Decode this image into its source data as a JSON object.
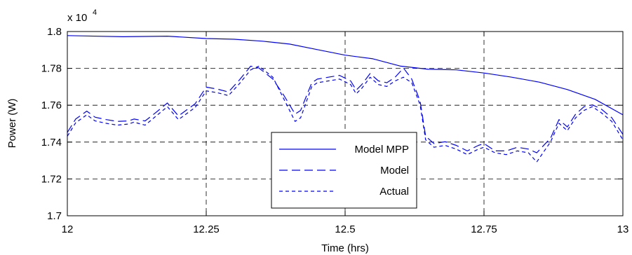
{
  "chart_data": {
    "type": "line",
    "title": "",
    "xlabel": "Time (hrs)",
    "ylabel": "Power (W)",
    "y_multiplier_label": "x 10",
    "y_multiplier_exponent": "4",
    "xlim": [
      12,
      13
    ],
    "ylim": [
      1.7,
      1.8
    ],
    "xticks": [
      12,
      12.25,
      12.5,
      12.75,
      13
    ],
    "xtick_labels": [
      "12",
      "12.25",
      "12.5",
      "12.75",
      "13"
    ],
    "yticks": [
      1.7,
      1.72,
      1.74,
      1.76,
      1.78,
      1.8
    ],
    "ytick_labels": [
      "1.7",
      "1.72",
      "1.74",
      "1.76",
      "1.78",
      "1.8"
    ],
    "grid": true,
    "legend_position": "bottom-center",
    "line_color": "#0000ff",
    "series": [
      {
        "name": "Model MPP",
        "style": "solid",
        "points": [
          [
            12.0,
            1.7978
          ],
          [
            12.1,
            1.7972
          ],
          [
            12.18,
            1.7975
          ],
          [
            12.25,
            1.7962
          ],
          [
            12.3,
            1.7958
          ],
          [
            12.35,
            1.7948
          ],
          [
            12.4,
            1.7932
          ],
          [
            12.45,
            1.7902
          ],
          [
            12.5,
            1.7872
          ],
          [
            12.55,
            1.7852
          ],
          [
            12.6,
            1.7812
          ],
          [
            12.65,
            1.7795
          ],
          [
            12.7,
            1.7792
          ],
          [
            12.75,
            1.7775
          ],
          [
            12.8,
            1.7752
          ],
          [
            12.85,
            1.7725
          ],
          [
            12.9,
            1.7685
          ],
          [
            12.95,
            1.7632
          ],
          [
            13.0,
            1.7548
          ]
        ]
      },
      {
        "name": "Model",
        "style": "long-dash",
        "points": [
          [
            12.0,
            1.7452
          ],
          [
            12.015,
            1.7525
          ],
          [
            12.035,
            1.7568
          ],
          [
            12.05,
            1.7535
          ],
          [
            12.07,
            1.7522
          ],
          [
            12.09,
            1.7512
          ],
          [
            12.11,
            1.7515
          ],
          [
            12.12,
            1.7525
          ],
          [
            12.14,
            1.7515
          ],
          [
            12.16,
            1.7562
          ],
          [
            12.18,
            1.7612
          ],
          [
            12.2,
            1.7542
          ],
          [
            12.23,
            1.7608
          ],
          [
            12.25,
            1.7698
          ],
          [
            12.27,
            1.7688
          ],
          [
            12.29,
            1.7672
          ],
          [
            12.31,
            1.7738
          ],
          [
            12.33,
            1.7812
          ],
          [
            12.345,
            1.7802
          ],
          [
            12.37,
            1.7742
          ],
          [
            12.39,
            1.7652
          ],
          [
            12.41,
            1.7552
          ],
          [
            12.42,
            1.7572
          ],
          [
            12.44,
            1.7722
          ],
          [
            12.45,
            1.7742
          ],
          [
            12.47,
            1.7752
          ],
          [
            12.49,
            1.7762
          ],
          [
            12.51,
            1.7732
          ],
          [
            12.52,
            1.7682
          ],
          [
            12.53,
            1.7712
          ],
          [
            12.545,
            1.7772
          ],
          [
            12.56,
            1.7732
          ],
          [
            12.575,
            1.7722
          ],
          [
            12.59,
            1.7752
          ],
          [
            12.605,
            1.7802
          ],
          [
            12.62,
            1.7742
          ],
          [
            12.635,
            1.7622
          ],
          [
            12.645,
            1.7432
          ],
          [
            12.66,
            1.7392
          ],
          [
            12.68,
            1.7402
          ],
          [
            12.7,
            1.7382
          ],
          [
            12.72,
            1.7352
          ],
          [
            12.74,
            1.7382
          ],
          [
            12.75,
            1.7392
          ],
          [
            12.77,
            1.7352
          ],
          [
            12.79,
            1.7352
          ],
          [
            12.81,
            1.7372
          ],
          [
            12.83,
            1.7362
          ],
          [
            12.845,
            1.7342
          ],
          [
            12.87,
            1.7422
          ],
          [
            12.885,
            1.7522
          ],
          [
            12.9,
            1.7482
          ],
          [
            12.915,
            1.7552
          ],
          [
            12.93,
            1.7592
          ],
          [
            12.945,
            1.7602
          ],
          [
            12.96,
            1.7582
          ],
          [
            12.98,
            1.7532
          ],
          [
            13.0,
            1.7442
          ]
        ]
      },
      {
        "name": "Actual",
        "style": "short-dash",
        "points": [
          [
            12.0,
            1.7432
          ],
          [
            12.015,
            1.7505
          ],
          [
            12.035,
            1.7548
          ],
          [
            12.05,
            1.7515
          ],
          [
            12.07,
            1.7502
          ],
          [
            12.09,
            1.7492
          ],
          [
            12.11,
            1.7498
          ],
          [
            12.12,
            1.7508
          ],
          [
            12.14,
            1.7492
          ],
          [
            12.16,
            1.7542
          ],
          [
            12.18,
            1.7592
          ],
          [
            12.2,
            1.7522
          ],
          [
            12.23,
            1.7588
          ],
          [
            12.25,
            1.7678
          ],
          [
            12.27,
            1.7668
          ],
          [
            12.29,
            1.7652
          ],
          [
            12.31,
            1.7718
          ],
          [
            12.33,
            1.7792
          ],
          [
            12.345,
            1.7812
          ],
          [
            12.37,
            1.7752
          ],
          [
            12.39,
            1.7632
          ],
          [
            12.41,
            1.7512
          ],
          [
            12.42,
            1.7532
          ],
          [
            12.44,
            1.7702
          ],
          [
            12.45,
            1.7722
          ],
          [
            12.47,
            1.7732
          ],
          [
            12.49,
            1.7742
          ],
          [
            12.51,
            1.7712
          ],
          [
            12.52,
            1.7662
          ],
          [
            12.53,
            1.7692
          ],
          [
            12.545,
            1.7752
          ],
          [
            12.56,
            1.7712
          ],
          [
            12.575,
            1.7702
          ],
          [
            12.59,
            1.7732
          ],
          [
            12.605,
            1.7752
          ],
          [
            12.62,
            1.7722
          ],
          [
            12.635,
            1.7602
          ],
          [
            12.645,
            1.7412
          ],
          [
            12.66,
            1.7372
          ],
          [
            12.68,
            1.7382
          ],
          [
            12.7,
            1.7362
          ],
          [
            12.72,
            1.7332
          ],
          [
            12.74,
            1.7362
          ],
          [
            12.75,
            1.7372
          ],
          [
            12.77,
            1.7342
          ],
          [
            12.79,
            1.7332
          ],
          [
            12.81,
            1.7352
          ],
          [
            12.83,
            1.7342
          ],
          [
            12.845,
            1.7292
          ],
          [
            12.87,
            1.7402
          ],
          [
            12.885,
            1.7502
          ],
          [
            12.9,
            1.7462
          ],
          [
            12.915,
            1.7532
          ],
          [
            12.93,
            1.7572
          ],
          [
            12.945,
            1.7592
          ],
          [
            12.96,
            1.7562
          ],
          [
            12.98,
            1.7512
          ],
          [
            13.0,
            1.7412
          ]
        ]
      }
    ]
  }
}
